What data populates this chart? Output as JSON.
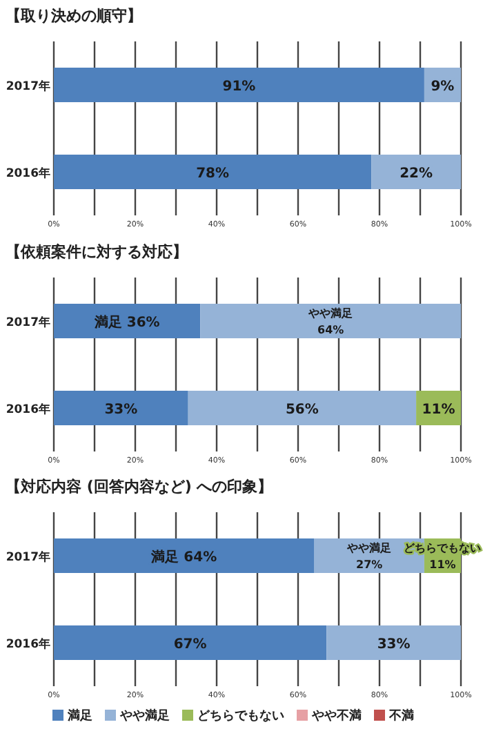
{
  "chart_data": [
    {
      "type": "bar",
      "orientation": "horizontal",
      "stacked": true,
      "title": "【取り決めの順守】",
      "categories": [
        "2017年",
        "2016年"
      ],
      "series": [
        {
          "color": "#4f81bd",
          "values": [
            91,
            78
          ],
          "value_labels": [
            "91%",
            "78%"
          ]
        },
        {
          "color": "#95b3d7",
          "values": [
            9,
            22
          ],
          "value_labels": [
            "9%",
            "22%"
          ]
        }
      ],
      "xlim": [
        0,
        100
      ],
      "xticks": [
        {
          "value": 0,
          "label": "0%"
        },
        {
          "value": 10,
          "label": null
        },
        {
          "value": 20,
          "label": "20%"
        },
        {
          "value": 30,
          "label": null
        },
        {
          "value": 40,
          "label": "40%"
        },
        {
          "value": 50,
          "label": null
        },
        {
          "value": 60,
          "label": "60%"
        },
        {
          "value": 70,
          "label": null
        },
        {
          "value": 80,
          "label": "80%"
        },
        {
          "value": 90,
          "label": null
        },
        {
          "value": 100,
          "label": "100%"
        }
      ],
      "grid": "x"
    },
    {
      "type": "bar",
      "orientation": "horizontal",
      "stacked": true,
      "title": "【依頼案件に対する対応】",
      "categories": [
        "2017年",
        "2016年"
      ],
      "series": [
        {
          "color": "#4f81bd",
          "values": [
            36,
            33
          ],
          "value_labels": [
            "満足 36%",
            "33%"
          ]
        },
        {
          "color": "#95b3d7",
          "values": [
            64,
            56
          ],
          "value_labels": [
            "やや満足\n64%",
            "56%"
          ]
        },
        {
          "color": "#9bbb59",
          "values": [
            null,
            11
          ],
          "value_labels": [
            null,
            "11%"
          ]
        }
      ],
      "xlim": [
        0,
        100
      ],
      "xticks": [
        {
          "value": 0,
          "label": "0%"
        },
        {
          "value": 10,
          "label": null
        },
        {
          "value": 20,
          "label": "20%"
        },
        {
          "value": 30,
          "label": null
        },
        {
          "value": 40,
          "label": "40%"
        },
        {
          "value": 50,
          "label": null
        },
        {
          "value": 60,
          "label": "60%"
        },
        {
          "value": 70,
          "label": null
        },
        {
          "value": 80,
          "label": "80%"
        },
        {
          "value": 90,
          "label": null
        },
        {
          "value": 100,
          "label": "100%"
        }
      ],
      "grid": "x"
    },
    {
      "type": "bar",
      "orientation": "horizontal",
      "stacked": true,
      "title": "【対応内容 (回答内容など) への印象】",
      "categories": [
        "2017年",
        "2016年"
      ],
      "series": [
        {
          "name": "満足",
          "color": "#4f81bd",
          "values": [
            64,
            67
          ],
          "value_labels": [
            "満足 64%",
            "67%"
          ]
        },
        {
          "name": "やや満足",
          "color": "#95b3d7",
          "values": [
            27,
            33
          ],
          "value_labels": [
            "やや満足\n27%",
            "33%"
          ]
        },
        {
          "name": "どちらでもない",
          "color": "#9bbb59",
          "values": [
            9,
            null
          ],
          "value_labels": [
            "どちらでもない\n11%",
            null
          ]
        },
        {
          "name": "やや不満",
          "color": "#e6a0a4",
          "values": [
            null,
            null
          ]
        },
        {
          "name": "不満",
          "color": "#c0504d",
          "values": [
            null,
            null
          ]
        }
      ],
      "xlim": [
        0,
        100
      ],
      "xticks": [
        {
          "value": 0,
          "label": "0%"
        },
        {
          "value": 10,
          "label": null
        },
        {
          "value": 20,
          "label": "20%"
        },
        {
          "value": 30,
          "label": null
        },
        {
          "value": 40,
          "label": "40%"
        },
        {
          "value": 50,
          "label": null
        },
        {
          "value": 60,
          "label": "60%"
        },
        {
          "value": 70,
          "label": null
        },
        {
          "value": 80,
          "label": "80%"
        },
        {
          "value": 90,
          "label": null
        },
        {
          "value": 100,
          "label": "100%"
        }
      ],
      "grid": "x",
      "legend": "bottom"
    }
  ]
}
